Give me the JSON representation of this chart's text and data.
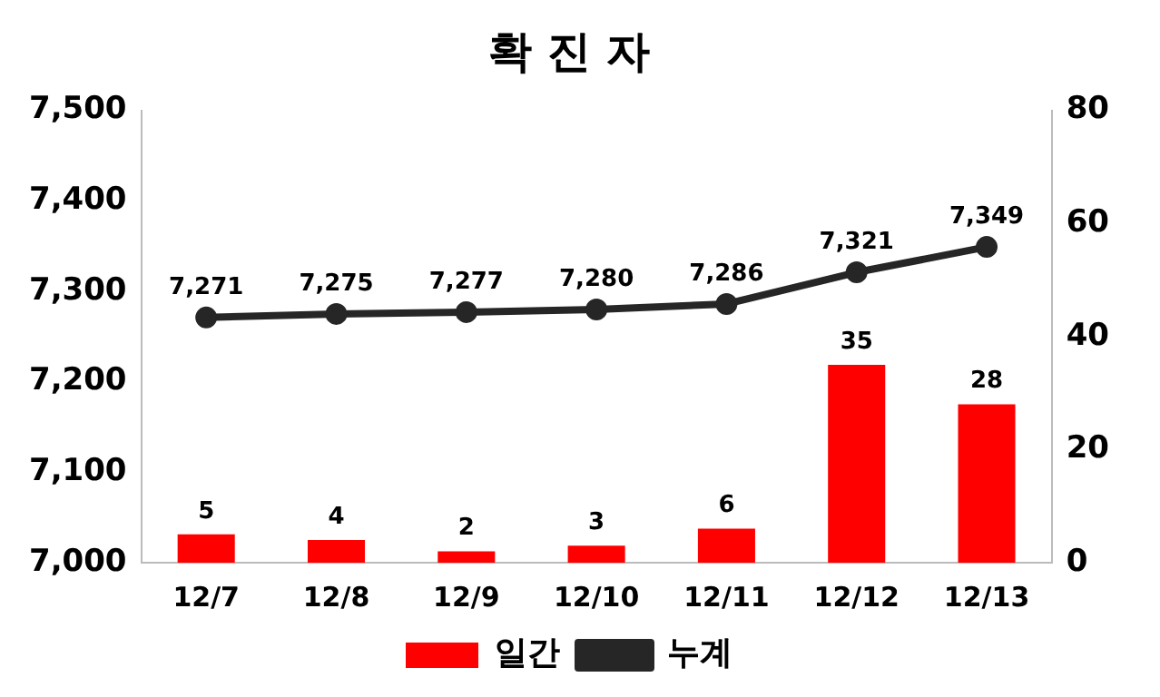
{
  "chart_data": {
    "type": "bar",
    "title": "확 진 자",
    "categories": [
      "12/7",
      "12/8",
      "12/9",
      "12/10",
      "12/11",
      "12/12",
      "12/13"
    ],
    "series": [
      {
        "name": "일간",
        "axis": "y2",
        "color": "#ff0000",
        "values": [
          5,
          4,
          2,
          3,
          6,
          35,
          28
        ],
        "value_labels": [
          "5",
          "4",
          "2",
          "3",
          "6",
          "35",
          "28"
        ]
      },
      {
        "name": "누계",
        "type": "line",
        "axis": "y",
        "color": "#262626",
        "values": [
          7271,
          7275,
          7277,
          7280,
          7286,
          7321,
          7349
        ],
        "value_labels": [
          "7,271",
          "7,275",
          "7,277",
          "7,280",
          "7,286",
          "7,321",
          "7,349"
        ]
      }
    ],
    "ylim": [
      7000,
      7500
    ],
    "yticks": [
      {
        "value": 7000,
        "label": "7,000"
      },
      {
        "value": 7100,
        "label": "7,100"
      },
      {
        "value": 7200,
        "label": "7,200"
      },
      {
        "value": 7300,
        "label": "7,300"
      },
      {
        "value": 7400,
        "label": "7,400"
      },
      {
        "value": 7500,
        "label": "7,500"
      }
    ],
    "y2lim": [
      0,
      80
    ],
    "y2ticks": [
      0,
      20,
      40,
      60,
      80
    ],
    "legend": "bottom",
    "marker": "circle"
  }
}
